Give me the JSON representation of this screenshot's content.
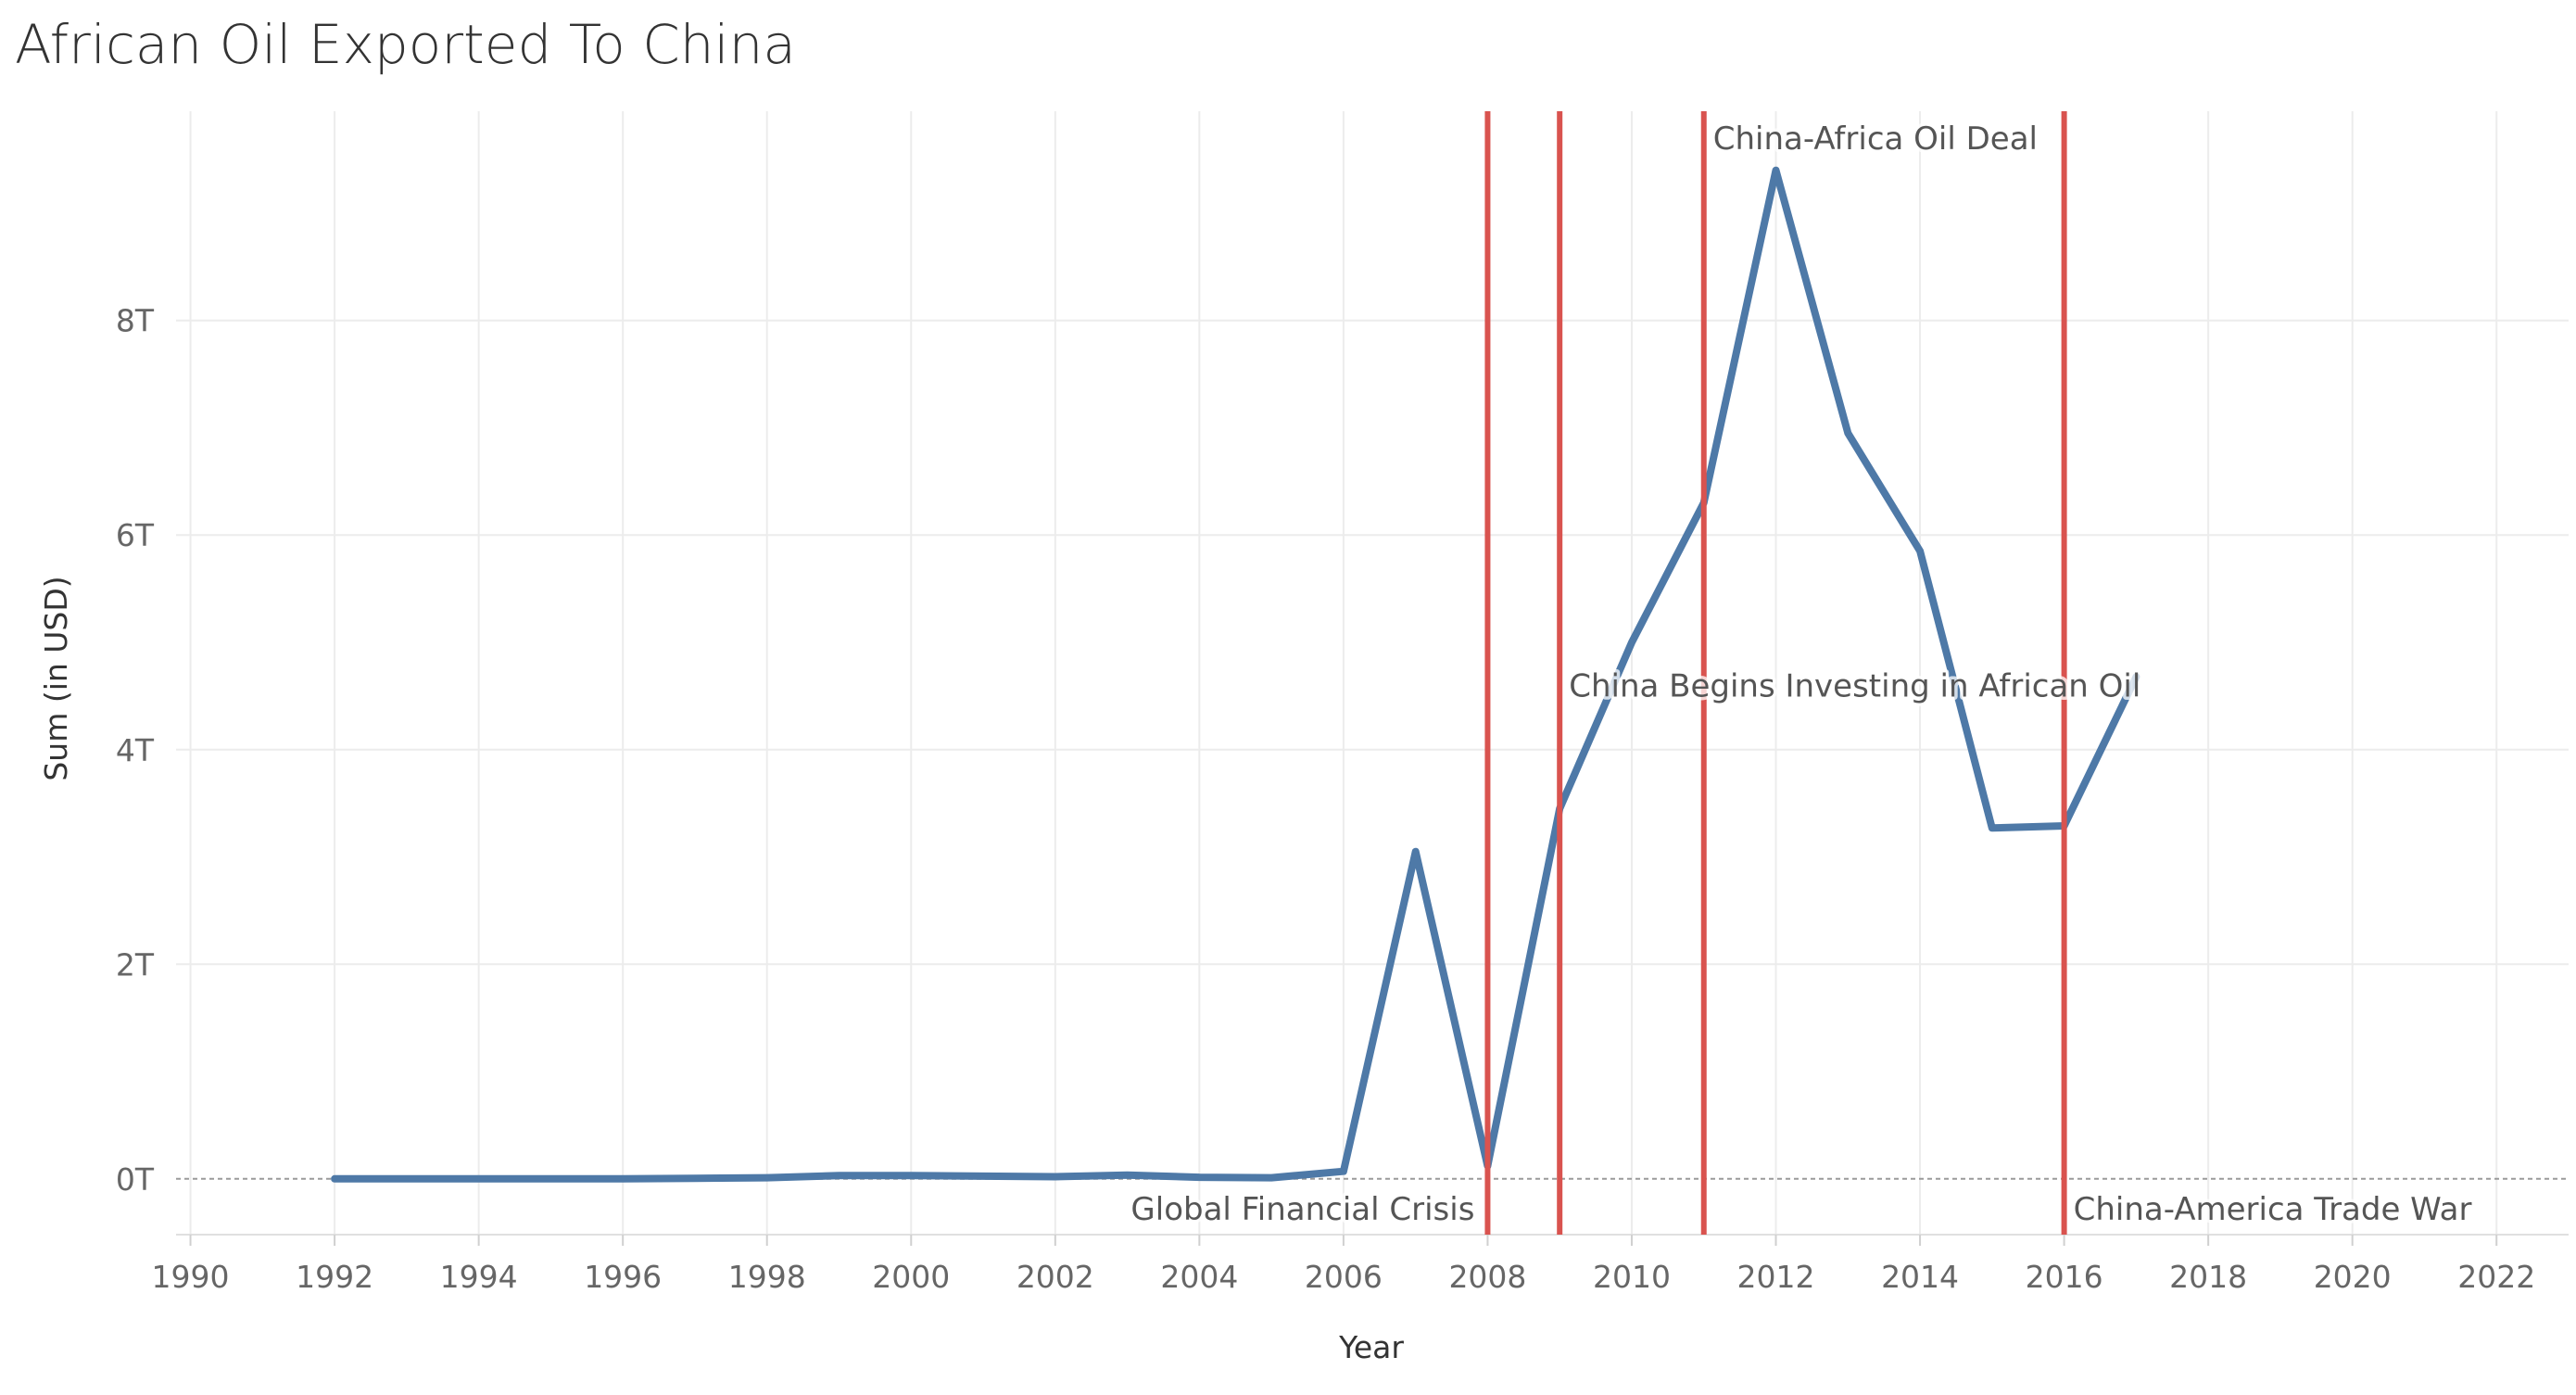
{
  "chart_data": {
    "type": "line",
    "title": "African Oil Exported To China",
    "xlabel": "Year",
    "ylabel": "Sum (in USD)",
    "xlim": [
      1989.8,
      2023
    ],
    "ylim": [
      -0.52,
      9.95
    ],
    "x_ticks": [
      {
        "value": 1990,
        "label": "1990"
      },
      {
        "value": 1992,
        "label": "1992"
      },
      {
        "value": 1994,
        "label": "1994"
      },
      {
        "value": 1996,
        "label": "1996"
      },
      {
        "value": 1998,
        "label": "1998"
      },
      {
        "value": 2000,
        "label": "2000"
      },
      {
        "value": 2002,
        "label": "2002"
      },
      {
        "value": 2004,
        "label": "2004"
      },
      {
        "value": 2006,
        "label": "2006"
      },
      {
        "value": 2008,
        "label": "2008"
      },
      {
        "value": 2010,
        "label": "2010"
      },
      {
        "value": 2012,
        "label": "2012"
      },
      {
        "value": 2014,
        "label": "2014"
      },
      {
        "value": 2016,
        "label": "2016"
      },
      {
        "value": 2018,
        "label": "2018"
      },
      {
        "value": 2020,
        "label": "2020"
      },
      {
        "value": 2022,
        "label": "2022"
      }
    ],
    "y_ticks": [
      {
        "value": 0,
        "label": "0T"
      },
      {
        "value": 2,
        "label": "2T"
      },
      {
        "value": 4,
        "label": "4T"
      },
      {
        "value": 6,
        "label": "6T"
      },
      {
        "value": 8,
        "label": "8T"
      }
    ],
    "grid": true,
    "legend": "none",
    "series": [
      {
        "color": "#4e79a7",
        "x": [
          1992,
          1993,
          1994,
          1995,
          1996,
          1997,
          1998,
          1999,
          2000,
          2001,
          2002,
          2003,
          2004,
          2005,
          2006,
          2007,
          2008,
          2009,
          2010,
          2011,
          2012,
          2013,
          2014,
          2015,
          2016,
          2017
        ],
        "y": [
          0.0,
          0.0,
          0.0,
          0.0,
          0.0,
          0.005,
          0.01,
          0.03,
          0.03,
          0.025,
          0.02,
          0.035,
          0.015,
          0.01,
          0.07,
          3.05,
          0.12,
          3.45,
          5.0,
          6.3,
          9.4,
          6.95,
          5.85,
          3.27,
          3.29,
          4.68
        ]
      }
    ],
    "reference_lines": [
      {
        "x": 2008,
        "color": "#d9534f"
      },
      {
        "x": 2009,
        "color": "#d9534f"
      },
      {
        "x": 2011,
        "color": "#d9534f"
      },
      {
        "x": 2016,
        "color": "#d9534f"
      }
    ],
    "annotations": [
      {
        "text": "Global Financial Crisis",
        "x": 2008,
        "y": -0.28
      },
      {
        "text": "China Begins Investing in African Oil",
        "x": 2009,
        "y": 4.6
      },
      {
        "text": "China-Africa Oil Deal",
        "x": 2011,
        "y": 9.7
      },
      {
        "text": "China-America Trade War",
        "x": 2016,
        "y": -0.28
      }
    ]
  }
}
